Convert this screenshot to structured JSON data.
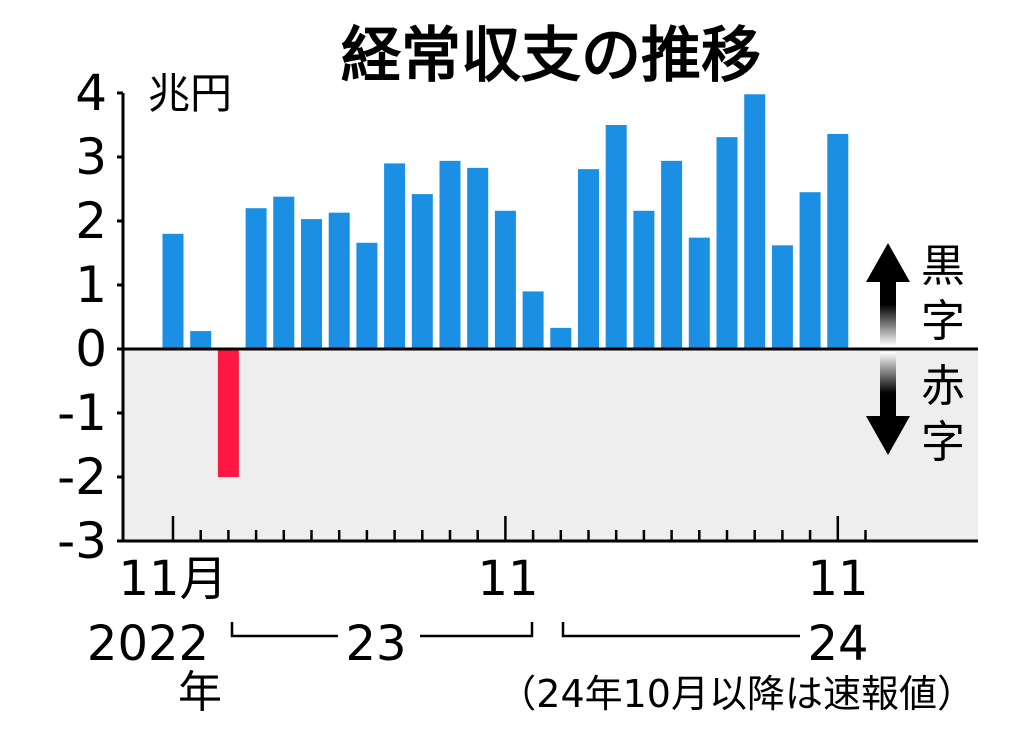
{
  "colors": {
    "positive": "#1a8fe3",
    "negative": "#ff1744",
    "deficit_bg": "#eeeeee",
    "axis": "#000000"
  },
  "legend": {
    "surplus": [
      "黒",
      "字"
    ],
    "deficit": [
      "赤",
      "字"
    ]
  },
  "chart_data": {
    "type": "bar",
    "title": "経常収支の推移",
    "ylabel": "兆円",
    "ylim": [
      -3,
      4
    ],
    "yticks": [
      4,
      3,
      2,
      1,
      0,
      -1,
      -2,
      -3
    ],
    "grid": false,
    "categories": [
      "2022-11",
      "2022-12",
      "2023-01",
      "2023-02",
      "2023-03",
      "2023-04",
      "2023-05",
      "2023-06",
      "2023-07",
      "2023-08",
      "2023-09",
      "2023-10",
      "2023-11",
      "2023-12",
      "2024-01",
      "2024-02",
      "2024-03",
      "2024-04",
      "2024-05",
      "2024-06",
      "2024-07",
      "2024-08",
      "2024-09",
      "2024-10",
      "2024-11",
      "2024-12"
    ],
    "values": [
      1.8,
      0.28,
      -2.0,
      2.2,
      2.38,
      2.03,
      2.13,
      1.66,
      2.9,
      2.42,
      2.94,
      2.83,
      2.16,
      0.9,
      0.33,
      2.81,
      3.5,
      2.16,
      2.94,
      1.74,
      3.31,
      3.98,
      1.62,
      2.45,
      3.36,
      null
    ],
    "x_tick_labels": [
      "11月",
      "11",
      "11"
    ],
    "year_labels": [
      "2022",
      "年",
      "23",
      "24"
    ],
    "note": "（24年10月以降は速報値）"
  }
}
